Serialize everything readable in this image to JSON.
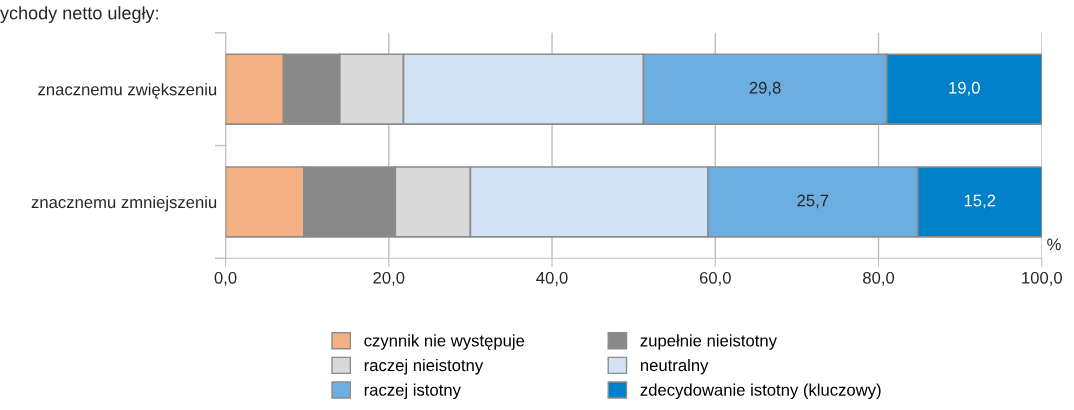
{
  "chart_data": {
    "type": "bar",
    "orientation": "horizontal",
    "stacked": true,
    "title": "ychody netto uległy:",
    "xlabel": "%",
    "categories": [
      "znacznemu zwiększeniu",
      "znacznemu zmniejszeniu"
    ],
    "series": [
      {
        "name": "czynnik nie występuje",
        "color": "#f4b183",
        "values": [
          7.1,
          9.6
        ]
      },
      {
        "name": "zupełnie nieistotny",
        "color": "#898989",
        "values": [
          6.9,
          11.2
        ]
      },
      {
        "name": "raczej nieistotny",
        "color": "#d9d9d9",
        "values": [
          7.8,
          9.2
        ]
      },
      {
        "name": "neutralny",
        "color": "#d2e3f5",
        "values": [
          29.4,
          29.1
        ]
      },
      {
        "name": "raczej istotny",
        "color": "#6caee0",
        "values": [
          29.8,
          25.7
        ],
        "value_labels": [
          "29,8",
          "25,7"
        ]
      },
      {
        "name": "zdecydowanie istotny (kluczowy)",
        "color": "#0080c8",
        "values": [
          19.0,
          15.2
        ],
        "value_labels": [
          "19,0",
          "15,2"
        ]
      }
    ],
    "xlim": [
      0,
      100
    ],
    "xticks": [
      {
        "value": 0,
        "label": "0,0"
      },
      {
        "value": 20,
        "label": "20,0"
      },
      {
        "value": 40,
        "label": "40,0"
      },
      {
        "value": 60,
        "label": "60,0"
      },
      {
        "value": 80,
        "label": "80,0"
      },
      {
        "value": 100,
        "label": "100,0"
      }
    ],
    "grid": "x",
    "legend": "bottom"
  }
}
